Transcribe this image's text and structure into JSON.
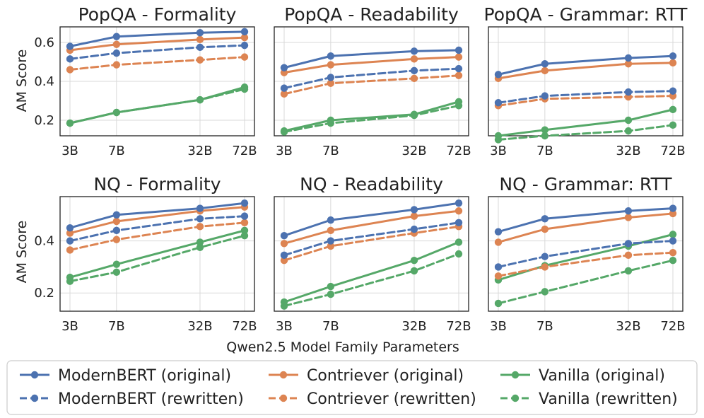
{
  "chart_data": {
    "type": "line",
    "x_label": "Qwen2.5 Model Family Parameters",
    "y_label": "AM Score",
    "x_categories": [
      "3B",
      "7B",
      "32B",
      "72B"
    ],
    "x_values": [
      3,
      7,
      32,
      72
    ],
    "x_scale": "log",
    "grid": true,
    "legend_position": "bottom",
    "series_styles": [
      {
        "name": "ModernBERT (original)",
        "color": "#4c72b0",
        "dash": "solid"
      },
      {
        "name": "ModernBERT (rewritten)",
        "color": "#4c72b0",
        "dash": "dashed"
      },
      {
        "name": "Contriever (original)",
        "color": "#dd8452",
        "dash": "solid"
      },
      {
        "name": "Contriever (rewritten)",
        "color": "#dd8452",
        "dash": "dashed"
      },
      {
        "name": "Vanilla (original)",
        "color": "#55a868",
        "dash": "solid"
      },
      {
        "name": "Vanilla (rewritten)",
        "color": "#55a868",
        "dash": "dashed"
      }
    ],
    "panels": [
      {
        "title": "PopQA - Formality",
        "ylim": [
          0.12,
          0.68
        ],
        "yticks": [
          0.2,
          0.4,
          0.6
        ],
        "y_tick_labels": [
          "0.2",
          "0.4",
          "0.6"
        ],
        "series": [
          {
            "name": "ModernBERT (original)",
            "values": [
              0.58,
              0.63,
              0.65,
              0.655
            ]
          },
          {
            "name": "ModernBERT (rewritten)",
            "values": [
              0.515,
              0.545,
              0.575,
              0.585
            ]
          },
          {
            "name": "Contriever (original)",
            "values": [
              0.56,
              0.59,
              0.615,
              0.625
            ]
          },
          {
            "name": "Contriever (rewritten)",
            "values": [
              0.46,
              0.485,
              0.51,
              0.525
            ]
          },
          {
            "name": "Vanilla (original)",
            "values": [
              0.185,
              0.24,
              0.305,
              0.37
            ]
          },
          {
            "name": "Vanilla (rewritten)",
            "values": [
              0.185,
              0.24,
              0.305,
              0.36
            ]
          }
        ]
      },
      {
        "title": "PopQA - Readability",
        "ylim": [
          0.12,
          0.68
        ],
        "yticks": [
          0.2,
          0.4,
          0.6
        ],
        "y_tick_labels": [
          "",
          "",
          ""
        ],
        "series": [
          {
            "name": "ModernBERT (original)",
            "values": [
              0.47,
              0.53,
              0.555,
              0.56
            ]
          },
          {
            "name": "ModernBERT (rewritten)",
            "values": [
              0.365,
              0.42,
              0.455,
              0.465
            ]
          },
          {
            "name": "Contriever (original)",
            "values": [
              0.445,
              0.485,
              0.515,
              0.525
            ]
          },
          {
            "name": "Contriever (rewritten)",
            "values": [
              0.335,
              0.39,
              0.415,
              0.43
            ]
          },
          {
            "name": "Vanilla (original)",
            "values": [
              0.145,
              0.2,
              0.23,
              0.295
            ]
          },
          {
            "name": "Vanilla (rewritten)",
            "values": [
              0.14,
              0.185,
              0.225,
              0.275
            ]
          }
        ]
      },
      {
        "title": "PopQA - Grammar: RTT",
        "ylim": [
          0.12,
          0.68
        ],
        "yticks": [
          0.2,
          0.4,
          0.6
        ],
        "y_tick_labels": [
          "",
          "",
          ""
        ],
        "series": [
          {
            "name": "ModernBERT (original)",
            "values": [
              0.435,
              0.49,
              0.52,
              0.53
            ]
          },
          {
            "name": "ModernBERT (rewritten)",
            "values": [
              0.29,
              0.325,
              0.345,
              0.35
            ]
          },
          {
            "name": "Contriever (original)",
            "values": [
              0.415,
              0.455,
              0.49,
              0.495
            ]
          },
          {
            "name": "Contriever (rewritten)",
            "values": [
              0.275,
              0.31,
              0.32,
              0.325
            ]
          },
          {
            "name": "Vanilla (original)",
            "values": [
              0.12,
              0.15,
              0.2,
              0.255
            ]
          },
          {
            "name": "Vanilla (rewritten)",
            "values": [
              0.1,
              0.12,
              0.145,
              0.175
            ]
          }
        ]
      },
      {
        "title": "NQ - Formality",
        "ylim": [
          0.13,
          0.57
        ],
        "yticks": [
          0.2,
          0.4
        ],
        "y_tick_labels": [
          "0.2",
          "0.4"
        ],
        "series": [
          {
            "name": "ModernBERT (original)",
            "values": [
              0.45,
              0.5,
              0.525,
              0.545
            ]
          },
          {
            "name": "ModernBERT (rewritten)",
            "values": [
              0.4,
              0.44,
              0.485,
              0.495
            ]
          },
          {
            "name": "Contriever (original)",
            "values": [
              0.43,
              0.475,
              0.515,
              0.53
            ]
          },
          {
            "name": "Contriever (rewritten)",
            "values": [
              0.365,
              0.405,
              0.455,
              0.47
            ]
          },
          {
            "name": "Vanilla (original)",
            "values": [
              0.26,
              0.31,
              0.395,
              0.44
            ]
          },
          {
            "name": "Vanilla (rewritten)",
            "values": [
              0.245,
              0.28,
              0.375,
              0.42
            ]
          }
        ]
      },
      {
        "title": "NQ - Readability",
        "ylim": [
          0.13,
          0.57
        ],
        "yticks": [
          0.2,
          0.4
        ],
        "y_tick_labels": [
          "",
          ""
        ],
        "series": [
          {
            "name": "ModernBERT (original)",
            "values": [
              0.42,
              0.48,
              0.52,
              0.545
            ]
          },
          {
            "name": "ModernBERT (rewritten)",
            "values": [
              0.345,
              0.4,
              0.445,
              0.47
            ]
          },
          {
            "name": "Contriever (original)",
            "values": [
              0.39,
              0.44,
              0.495,
              0.515
            ]
          },
          {
            "name": "Contriever (rewritten)",
            "values": [
              0.325,
              0.38,
              0.43,
              0.455
            ]
          },
          {
            "name": "Vanilla (original)",
            "values": [
              0.165,
              0.225,
              0.325,
              0.395
            ]
          },
          {
            "name": "Vanilla (rewritten)",
            "values": [
              0.15,
              0.195,
              0.285,
              0.35
            ]
          }
        ]
      },
      {
        "title": "NQ - Grammar: RTT",
        "ylim": [
          0.13,
          0.57
        ],
        "yticks": [
          0.2,
          0.4
        ],
        "y_tick_labels": [
          "",
          ""
        ],
        "series": [
          {
            "name": "ModernBERT (original)",
            "values": [
              0.435,
              0.485,
              0.515,
              0.525
            ]
          },
          {
            "name": "ModernBERT (rewritten)",
            "values": [
              0.3,
              0.34,
              0.39,
              0.4
            ]
          },
          {
            "name": "Contriever (original)",
            "values": [
              0.395,
              0.445,
              0.49,
              0.505
            ]
          },
          {
            "name": "Contriever (rewritten)",
            "values": [
              0.265,
              0.3,
              0.345,
              0.355
            ]
          },
          {
            "name": "Vanilla (original)",
            "values": [
              0.25,
              0.305,
              0.38,
              0.425
            ]
          },
          {
            "name": "Vanilla (rewritten)",
            "values": [
              0.16,
              0.205,
              0.285,
              0.325
            ]
          }
        ]
      }
    ]
  }
}
